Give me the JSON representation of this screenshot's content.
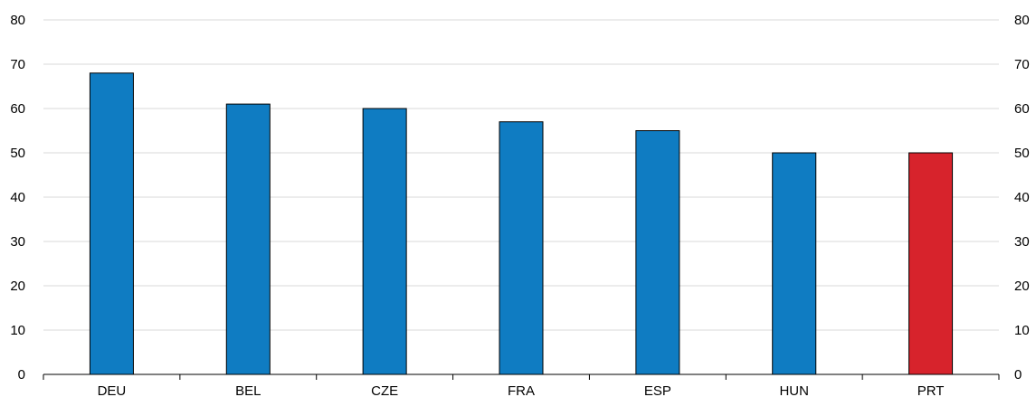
{
  "chart_data": {
    "type": "bar",
    "title": "",
    "xlabel": "",
    "ylabel": "",
    "categories": [
      "DEU",
      "BEL",
      "CZE",
      "FRA",
      "ESP",
      "HUN",
      "PRT"
    ],
    "values": [
      68,
      61,
      60,
      57,
      55,
      50,
      50
    ],
    "highlight_category": "PRT",
    "ylim": [
      0,
      80
    ],
    "yticks": [
      "0",
      "10",
      "20",
      "30",
      "40",
      "50",
      "60",
      "70",
      "80"
    ],
    "grid": true,
    "dual_y_axis": true,
    "colors": {
      "bar": "#0f7cc2",
      "highlight": "#d7232c",
      "grid": "#d9d9d9",
      "axis": "#000000"
    }
  }
}
